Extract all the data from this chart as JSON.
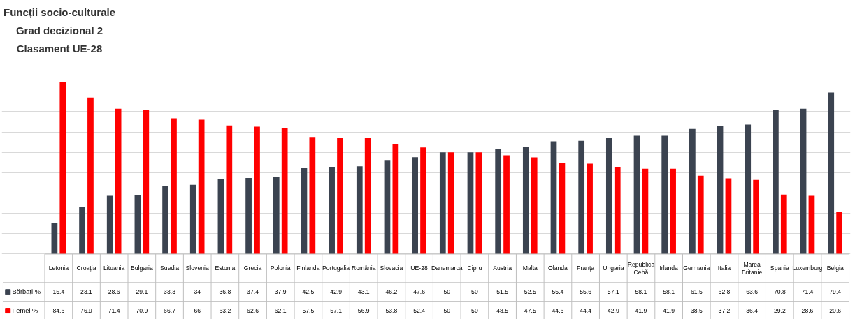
{
  "chart_data": {
    "type": "bar",
    "title": "Funcții socio-culturale",
    "subtitle": "Grad decizional 2\nClasament UE-28",
    "categories": [
      "Letonia",
      "Croația",
      "Lituania",
      "Bulgaria",
      "Suedia",
      "Slovenia",
      "Estonia",
      "Grecia",
      "Polonia",
      "Finlanda",
      "Portugalia",
      "România",
      "Slovacia",
      "UE-28",
      "Danemarca",
      "Cipru",
      "Austria",
      "Malta",
      "Olanda",
      "Franța",
      "Ungaria",
      "Republica Cehă",
      "Irlanda",
      "Germania",
      "Italia",
      "Marea Britanie",
      "Spania",
      "Luxemburg",
      "Belgia"
    ],
    "series": [
      {
        "name": "Bărbați %",
        "color": "#3b4350",
        "values": [
          15.4,
          23.1,
          28.6,
          29.1,
          33.3,
          34,
          36.8,
          37.4,
          37.9,
          42.5,
          42.9,
          43.1,
          46.2,
          47.6,
          50,
          50,
          51.5,
          52.5,
          55.4,
          55.6,
          57.1,
          58.1,
          58.1,
          61.5,
          62.8,
          63.6,
          70.8,
          71.4,
          79.4
        ]
      },
      {
        "name": "Femei %",
        "color": "#ff0000",
        "values": [
          84.6,
          76.9,
          71.4,
          70.9,
          66.7,
          66,
          63.2,
          62.6,
          62.1,
          57.5,
          57.1,
          56.9,
          53.8,
          52.4,
          50,
          50,
          48.5,
          47.5,
          44.6,
          44.4,
          42.9,
          41.9,
          41.9,
          38.5,
          37.2,
          36.4,
          29.2,
          28.6,
          20.6
        ]
      }
    ],
    "grid": "y",
    "data_labels": true,
    "legend": "bottom"
  }
}
